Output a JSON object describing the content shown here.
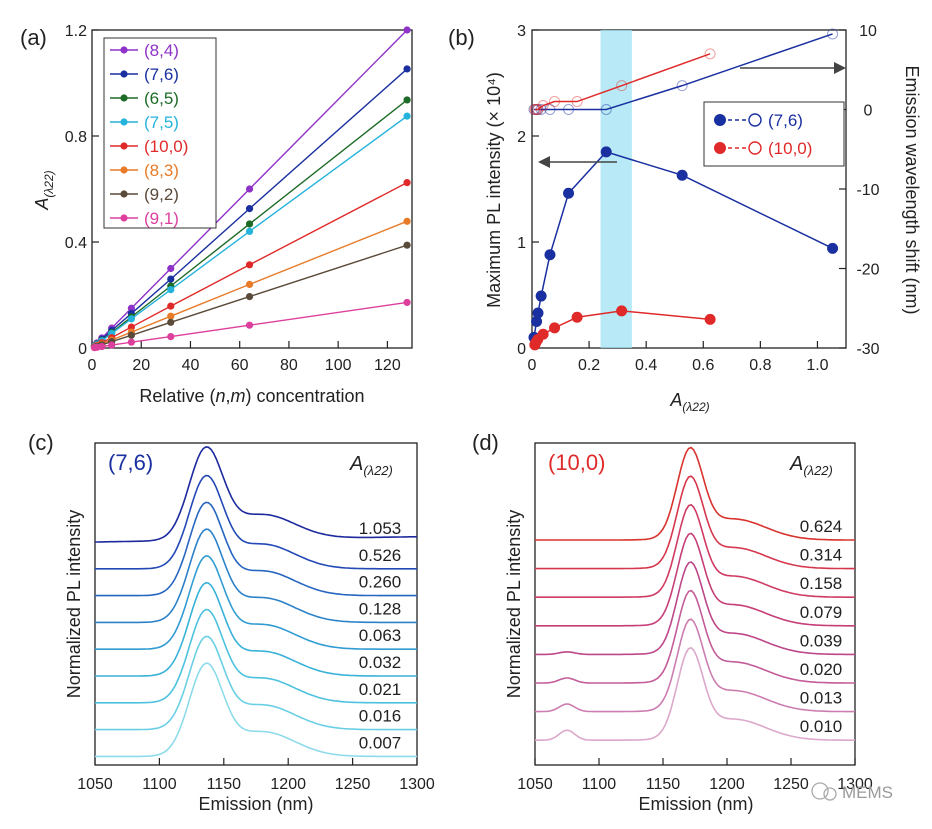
{
  "chart_data": [
    {
      "panel": "(a)",
      "type": "line",
      "xlabel_parts": [
        "Relative (",
        "n",
        ",",
        "m",
        ") concentration"
      ],
      "ylabel_base": "A",
      "ylabel_sub": "(λ22)",
      "xlim": [
        0,
        130
      ],
      "ylim": [
        0,
        1.2
      ],
      "xticks": [
        0,
        20,
        40,
        60,
        80,
        100,
        120
      ],
      "yticks": [
        0,
        0.4,
        0.8,
        1.2
      ],
      "x": [
        1,
        2,
        4,
        8,
        16,
        32,
        64,
        128
      ],
      "series": [
        {
          "name": "(8,4)",
          "color": "#8e32c8",
          "values": [
            0.009,
            0.019,
            0.038,
            0.075,
            0.15,
            0.3,
            0.6,
            1.2
          ]
        },
        {
          "name": "(7,6)",
          "color": "#1a2fa0",
          "values": [
            0.008,
            0.016,
            0.033,
            0.066,
            0.13,
            0.26,
            0.526,
            1.053
          ]
        },
        {
          "name": "(6,5)",
          "color": "#1d6b26",
          "values": [
            0.007,
            0.015,
            0.029,
            0.058,
            0.117,
            0.234,
            0.468,
            0.936
          ]
        },
        {
          "name": "(7,5)",
          "color": "#25b3dc",
          "values": [
            0.007,
            0.014,
            0.027,
            0.055,
            0.11,
            0.22,
            0.44,
            0.875
          ]
        },
        {
          "name": "(10,0)",
          "color": "#e02a2a",
          "values": [
            0.005,
            0.01,
            0.02,
            0.039,
            0.079,
            0.158,
            0.314,
            0.624
          ]
        },
        {
          "name": "(8,3)",
          "color": "#e87b28",
          "values": [
            0.004,
            0.008,
            0.015,
            0.03,
            0.06,
            0.12,
            0.24,
            0.478
          ]
        },
        {
          "name": "(9,2)",
          "color": "#5a4a3a",
          "values": [
            0.003,
            0.006,
            0.012,
            0.024,
            0.048,
            0.097,
            0.194,
            0.388
          ]
        },
        {
          "name": "(9,1)",
          "color": "#dd3f9d",
          "values": [
            0.0013,
            0.0027,
            0.0054,
            0.011,
            0.022,
            0.043,
            0.086,
            0.172
          ]
        }
      ]
    },
    {
      "panel": "(b)",
      "type": "line",
      "xlabel_base": "A",
      "xlabel_sub": "(λ22)",
      "ylabel": "Maximum PL intensity (× 10⁴)",
      "ylabel_right": "Emission wavelength shift (nm)",
      "xlim": [
        0,
        1.1
      ],
      "ylim": [
        0,
        3
      ],
      "ylim_right": [
        -30,
        10
      ],
      "xticks": [
        "0",
        "0.2",
        "0.4",
        "0.6",
        "0.8",
        "1.0"
      ],
      "yticks": [
        "0",
        "1",
        "2",
        "3"
      ],
      "yticks_right": [
        "10",
        "0",
        "-10",
        "-20",
        "-30"
      ],
      "highlight_band": [
        0.24,
        0.35
      ],
      "legend": [
        "(7,6)",
        "(10,0)"
      ],
      "series": [
        {
          "name": "(7,6) intensity",
          "color": "#1a2fa0",
          "marker": "filled",
          "x": [
            0.007,
            0.016,
            0.021,
            0.032,
            0.063,
            0.128,
            0.26,
            0.526,
            1.053
          ],
          "y": [
            0.1,
            0.25,
            0.33,
            0.49,
            0.88,
            1.46,
            1.85,
            1.63,
            0.94
          ]
        },
        {
          "name": "(10,0) intensity",
          "color": "#e02a2a",
          "marker": "filled",
          "x": [
            0.01,
            0.013,
            0.02,
            0.039,
            0.079,
            0.158,
            0.314,
            0.624
          ],
          "y": [
            0.03,
            0.05,
            0.08,
            0.13,
            0.19,
            0.29,
            0.35,
            0.27
          ]
        },
        {
          "name": "(7,6) shift",
          "color": "#1a2fa0",
          "marker": "open",
          "x": [
            0.007,
            0.016,
            0.021,
            0.032,
            0.063,
            0.128,
            0.26,
            0.526,
            1.053
          ],
          "y": [
            0,
            0,
            0,
            0,
            0,
            0,
            0,
            3,
            9.5
          ]
        },
        {
          "name": "(10,0) shift",
          "color": "#e02a2a",
          "marker": "open",
          "x": [
            0.01,
            0.013,
            0.02,
            0.039,
            0.079,
            0.158,
            0.314,
            0.624
          ],
          "y": [
            0,
            0,
            0,
            0.5,
            1,
            1,
            3,
            7
          ]
        }
      ]
    },
    {
      "panel": "(c)",
      "type": "line",
      "title": "(7,6)",
      "title_color": "#1a2fa0",
      "xlabel": "Emission (nm)",
      "ylabel": "Normalized PL intensity",
      "legend_header_base": "A",
      "legend_header_sub": "(λ22)",
      "xlim": [
        1050,
        1300
      ],
      "xticks": [
        1050,
        1100,
        1150,
        1200,
        1250,
        1300
      ],
      "peak_nm": 1136,
      "labels": [
        "1.053",
        "0.526",
        "0.260",
        "0.128",
        "0.063",
        "0.032",
        "0.021",
        "0.016",
        "0.007"
      ],
      "colors": [
        "#1c2a9e",
        "#2249b6",
        "#2766c0",
        "#2b82c9",
        "#309cd2",
        "#38b2d9",
        "#4cc2de",
        "#6acfe4",
        "#8ddbea"
      ]
    },
    {
      "panel": "(d)",
      "type": "line",
      "title": "(10,0)",
      "title_color": "#e02a2a",
      "xlabel": "Emission (nm)",
      "ylabel": "Normalized PL intensity",
      "legend_header_base": "A",
      "legend_header_sub": "(λ22)",
      "xlim": [
        1050,
        1300
      ],
      "xticks": [
        1050,
        1100,
        1150,
        1200,
        1250,
        1300
      ],
      "peak_nm": 1171,
      "labels": [
        "0.624",
        "0.314",
        "0.158",
        "0.079",
        "0.039",
        "0.020",
        "0.013",
        "0.010"
      ],
      "colors": [
        "#d8342e",
        "#d6374c",
        "#cf3b63",
        "#c63e78",
        "#bd4788",
        "#c35c98",
        "#cc7db0",
        "#dca8cb"
      ]
    }
  ],
  "watermark": "MEMS"
}
